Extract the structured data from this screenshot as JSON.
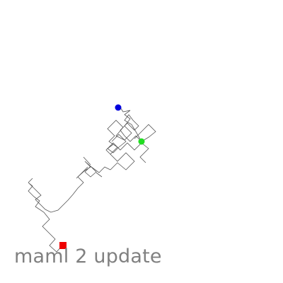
{
  "caption": "maml 2 update",
  "colors": {
    "background": "#ffffff",
    "trail": "#555555",
    "start_marker": "#ee0000",
    "agent_marker": "#0000dd",
    "goal_marker": "#22dd22",
    "caption_text": "#808080"
  },
  "markers": [
    {
      "role": "start",
      "shape": "square",
      "icon": "red-square-icon"
    },
    {
      "role": "agent",
      "shape": "circle",
      "icon": "blue-dot-icon"
    },
    {
      "role": "goal",
      "shape": "circle",
      "icon": "green-dot-icon"
    }
  ]
}
